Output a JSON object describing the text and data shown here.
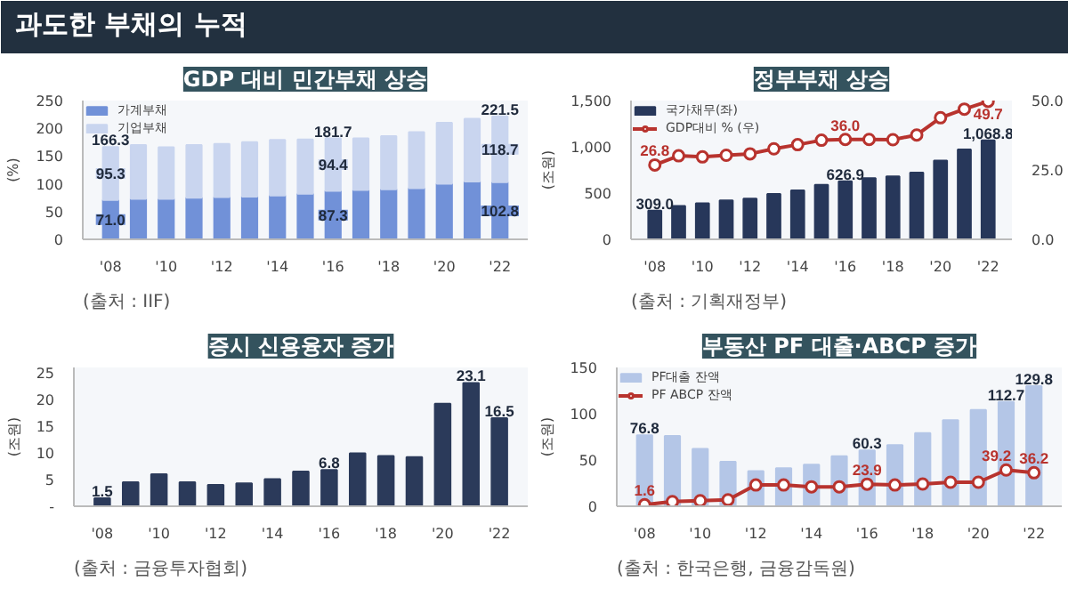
{
  "chart_data": [
    {
      "type": "other",
      "title": "과도한 부채의 누적"
    },
    {
      "type": "bar",
      "title": "GDP 대비 민간부채 상승",
      "ylabel": "(%)",
      "stacked": true,
      "legend": "top left",
      "categories": [
        "'08",
        null,
        "'10",
        null,
        "'12",
        null,
        "'14",
        null,
        "'16",
        null,
        "'18",
        null,
        "'20",
        null,
        "'22"
      ],
      "ylim": [
        0,
        250
      ],
      "yticks": [
        0,
        50,
        100,
        150,
        200,
        250
      ],
      "series": [
        {
          "name": "가계부채",
          "color": "#7191d8",
          "values": [
            71.0,
            73,
            73,
            75,
            76,
            77,
            79,
            82,
            87.3,
            89,
            90,
            92,
            100,
            104,
            102.8
          ],
          "value_labels": [
            "71.0",
            null,
            null,
            null,
            null,
            null,
            null,
            null,
            "87.3",
            null,
            null,
            null,
            null,
            null,
            "102.8"
          ]
        },
        {
          "name": "기업부채",
          "color": "#c9d5ef",
          "values": [
            95.3,
            97,
            93,
            95,
            96,
            98,
            100,
            98,
            94.4,
            93,
            96,
            101,
            110,
            113,
            118.7
          ],
          "value_labels": [
            "95.3",
            null,
            null,
            null,
            null,
            null,
            null,
            null,
            "94.4",
            null,
            null,
            null,
            null,
            null,
            "118.7"
          ]
        }
      ],
      "totals": [
        "166.3",
        null,
        null,
        null,
        null,
        null,
        null,
        null,
        "181.7",
        null,
        null,
        null,
        null,
        null,
        "221.5"
      ],
      "annotations": [
        "(출처 : IIF)"
      ]
    },
    {
      "type": "bar",
      "title": "정부부채 상승",
      "ylabel": "(조원)",
      "legend": "top left",
      "marker": "circle",
      "categories": [
        "'08",
        null,
        "'10",
        null,
        "'12",
        null,
        "'14",
        null,
        "'16",
        null,
        "'18",
        null,
        "'20",
        null,
        "'22"
      ],
      "ylim": [
        0,
        1500
      ],
      "yticks": [
        0,
        500,
        {
          "value": 1000,
          "label": "1,000"
        },
        {
          "value": 1500,
          "label": "1,500"
        }
      ],
      "y2lim": [
        0,
        50
      ],
      "y2ticks": [
        {
          "value": 0,
          "label": "0.0"
        },
        {
          "value": 25,
          "label": "25.0"
        },
        {
          "value": 50,
          "label": "50.0"
        }
      ],
      "series": [
        {
          "name": "국가채무(좌)",
          "type": "bar",
          "color": "#27375a",
          "values": [
            309.0,
            360,
            390,
            420,
            440,
            490,
            530,
            590,
            626.9,
            660,
            680,
            720,
            850,
            970,
            1068.8
          ],
          "value_labels": [
            "309.0",
            null,
            null,
            null,
            null,
            null,
            null,
            null,
            "626.9",
            null,
            null,
            null,
            null,
            null,
            "1,068.8"
          ]
        },
        {
          "name": "GDP대비 % (우)",
          "type": "line",
          "axis": "y2",
          "color": "#b8332e",
          "values": [
            26.8,
            30.1,
            29.7,
            30.3,
            30.8,
            32.6,
            34.1,
            35.7,
            36.0,
            36.0,
            35.9,
            37.6,
            43.8,
            46.9,
            49.7
          ],
          "value_labels": [
            "26.8",
            null,
            null,
            null,
            null,
            null,
            null,
            null,
            "36.0",
            null,
            null,
            null,
            null,
            null,
            "49.7"
          ]
        }
      ],
      "annotations": [
        "(출처 : 기획재정부)"
      ]
    },
    {
      "type": "bar",
      "title": "증시 신용융자 증가",
      "ylabel": "(조원)",
      "categories": [
        "'08",
        null,
        "'10",
        null,
        "'12",
        null,
        "'14",
        null,
        "'16",
        null,
        "'18",
        null,
        "'20",
        null,
        "'22"
      ],
      "ylim": [
        0,
        26
      ],
      "yticks": [
        {
          "value": 0,
          "label": "-"
        },
        5,
        10,
        15,
        20,
        25
      ],
      "series": [
        {
          "color": "#2b3a5a",
          "values": [
            1.5,
            4.5,
            6.0,
            4.5,
            4.0,
            4.3,
            5.1,
            6.5,
            6.8,
            9.9,
            9.4,
            9.2,
            19.2,
            23.1,
            16.5
          ],
          "value_labels": [
            "1.5",
            null,
            null,
            null,
            null,
            null,
            null,
            null,
            "6.8",
            null,
            null,
            null,
            null,
            "23.1",
            "16.5"
          ]
        }
      ],
      "annotations": [
        "(출처 : 금융투자협회)"
      ]
    },
    {
      "type": "bar",
      "title": "부동산 PF 대출·ABCP 증가",
      "ylabel": "(조원)",
      "legend": "top left",
      "marker": "circle",
      "categories": [
        "'08",
        null,
        "'10",
        null,
        "'12",
        null,
        "'14",
        null,
        "'16",
        null,
        "'18",
        null,
        "'20",
        null,
        "'22"
      ],
      "ylim": [
        0,
        150
      ],
      "yticks": [
        0,
        50,
        100,
        150
      ],
      "series": [
        {
          "name": "PF대출 잔액",
          "type": "bar",
          "color": "#b4c6e7",
          "values": [
            76.8,
            76,
            62,
            48,
            38,
            41,
            45,
            54,
            60.3,
            66,
            79,
            93,
            104,
            112.7,
            129.8
          ],
          "value_labels": [
            "76.8",
            null,
            null,
            null,
            null,
            null,
            null,
            null,
            "60.3",
            null,
            null,
            null,
            null,
            "112.7",
            "129.8"
          ]
        },
        {
          "name": "PF ABCP 잔액",
          "type": "line",
          "color": "#b8332e",
          "values": [
            1.6,
            5,
            6,
            7,
            23,
            23,
            21,
            21,
            23.9,
            23,
            24,
            26,
            26,
            39.2,
            36.2
          ],
          "value_labels": [
            "1.6",
            null,
            null,
            null,
            null,
            null,
            null,
            null,
            "23.9",
            null,
            null,
            null,
            null,
            "39.2",
            "36.2"
          ]
        }
      ],
      "annotations": [
        "(출처 : 한국은행, 금융감독원)"
      ]
    }
  ]
}
